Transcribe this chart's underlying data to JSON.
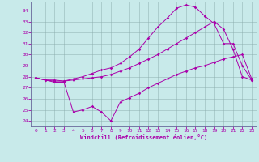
{
  "xlabel": "Windchill (Refroidissement éolien,°C)",
  "bg_color": "#c8eaea",
  "line_color": "#aa00aa",
  "xlim": [
    -0.5,
    23.5
  ],
  "ylim": [
    23.5,
    34.8
  ],
  "yticks": [
    24,
    25,
    26,
    27,
    28,
    29,
    30,
    31,
    32,
    33,
    34
  ],
  "xticks": [
    0,
    1,
    2,
    3,
    4,
    5,
    6,
    7,
    8,
    9,
    10,
    11,
    12,
    13,
    14,
    15,
    16,
    17,
    18,
    19,
    20,
    21,
    22,
    23
  ],
  "line1_x": [
    0,
    1,
    2,
    3,
    4,
    5,
    6,
    7,
    8,
    9,
    10,
    11,
    12,
    13,
    14,
    15,
    16,
    17,
    18,
    19,
    20,
    21,
    22,
    23
  ],
  "line1_y": [
    27.9,
    27.7,
    27.5,
    27.5,
    24.8,
    25.0,
    25.3,
    24.8,
    24.0,
    25.7,
    26.1,
    26.5,
    27.0,
    27.4,
    27.8,
    28.2,
    28.5,
    28.8,
    29.0,
    29.3,
    29.6,
    29.8,
    30.0,
    27.8
  ],
  "line2_x": [
    0,
    1,
    2,
    3,
    4,
    5,
    6,
    7,
    8,
    9,
    10,
    11,
    12,
    13,
    14,
    15,
    16,
    17,
    18,
    19,
    20,
    21,
    22,
    23
  ],
  "line2_y": [
    27.9,
    27.7,
    27.6,
    27.6,
    27.7,
    27.8,
    27.9,
    28.0,
    28.2,
    28.5,
    28.8,
    29.2,
    29.6,
    30.0,
    30.5,
    31.0,
    31.5,
    32.0,
    32.5,
    33.0,
    32.3,
    30.5,
    28.0,
    27.7
  ],
  "line3_x": [
    0,
    1,
    2,
    3,
    4,
    5,
    6,
    7,
    8,
    9,
    10,
    11,
    12,
    13,
    14,
    15,
    16,
    17,
    18,
    19,
    20,
    21,
    22,
    23
  ],
  "line3_y": [
    27.9,
    27.7,
    27.7,
    27.6,
    27.8,
    28.0,
    28.3,
    28.6,
    28.8,
    29.2,
    29.8,
    30.5,
    31.5,
    32.5,
    33.3,
    34.2,
    34.5,
    34.3,
    33.5,
    32.8,
    31.0,
    31.0,
    29.0,
    27.7
  ]
}
